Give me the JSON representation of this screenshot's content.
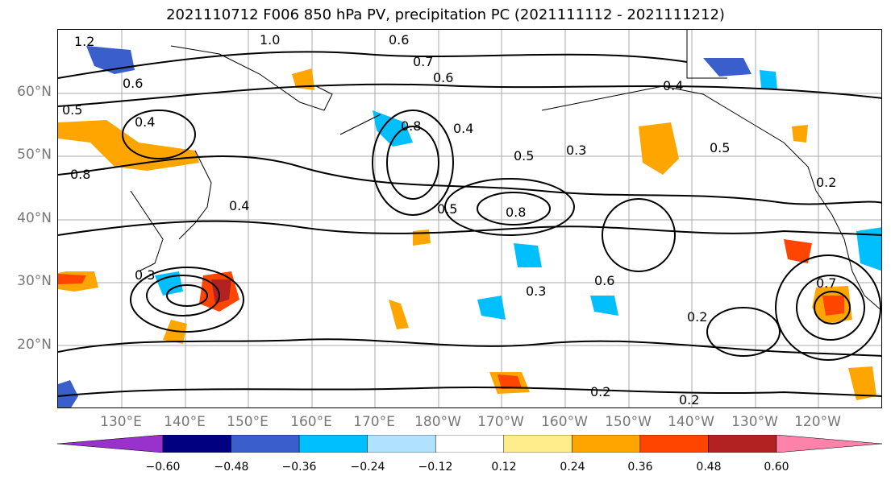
{
  "title": "2021110712 F006 850 hPa PV, precipitation PC (2021111112 - 2021111212)",
  "lat_labels": [
    "60°N",
    "50°N",
    "40°N",
    "30°N",
    "20°N"
  ],
  "lon_labels": [
    "130°E",
    "140°E",
    "150°E",
    "160°E",
    "170°E",
    "180°W",
    "170°W",
    "160°W",
    "150°W",
    "140°W",
    "130°W",
    "120°W"
  ],
  "colorbar": {
    "ticks": [
      "−0.60",
      "−0.48",
      "−0.36",
      "−0.24",
      "−0.12",
      "0.12",
      "0.24",
      "0.36",
      "0.48",
      "0.60"
    ],
    "colors": [
      "#9932cc",
      "#000080",
      "#3a5fcd",
      "#00bfff",
      "#b0e2ff",
      "#ffffff",
      "#ffec8b",
      "#ffa500",
      "#ff4500",
      "#b22222",
      "#ff82ab"
    ]
  },
  "contour_labels": [
    "1.2",
    "1.0",
    "0.8",
    "0.7",
    "0.6",
    "0.5",
    "0.4",
    "0.3",
    "0.2"
  ],
  "visible_contour_values": {
    "a": "1.2",
    "b": "1.0",
    "c": "0.6",
    "d": "0.8",
    "e": "0.7",
    "f": "0.5",
    "g": "0.4",
    "h": "0.3",
    "i": "0.2"
  }
}
